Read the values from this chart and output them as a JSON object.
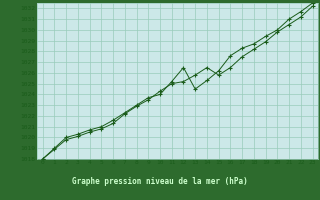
{
  "title": "Graphe pression niveau de la mer (hPa)",
  "plot_bg": "#cce8e8",
  "bottom_bg": "#2d6b2d",
  "grid_color": "#99ccbb",
  "line_color": "#1a5c1a",
  "marker_color": "#1a5c1a",
  "tick_label_color": "#1a5c1a",
  "bottom_text_color": "#ccffcc",
  "xlim": [
    -0.5,
    23.5
  ],
  "ylim": [
    1018,
    1032.5
  ],
  "xticks": [
    0,
    1,
    2,
    3,
    4,
    5,
    6,
    7,
    8,
    9,
    10,
    11,
    12,
    13,
    14,
    15,
    16,
    17,
    18,
    19,
    20,
    21,
    22,
    23
  ],
  "yticks": [
    1018,
    1019,
    1020,
    1021,
    1022,
    1023,
    1024,
    1025,
    1026,
    1027,
    1028,
    1029,
    1030,
    1031,
    1032
  ],
  "series1_x": [
    0,
    1,
    2,
    3,
    4,
    5,
    6,
    7,
    8,
    9,
    10,
    11,
    12,
    13,
    14,
    15,
    16,
    17,
    18,
    19,
    20,
    21,
    22,
    23
  ],
  "series1_y": [
    1018.0,
    1018.9,
    1019.8,
    1020.1,
    1020.5,
    1020.8,
    1021.3,
    1022.2,
    1022.9,
    1023.5,
    1024.3,
    1025.0,
    1025.2,
    1025.8,
    1026.5,
    1025.8,
    1026.5,
    1027.5,
    1028.2,
    1028.9,
    1029.8,
    1030.5,
    1031.2,
    1032.2
  ],
  "series2_x": [
    0,
    1,
    2,
    3,
    4,
    5,
    6,
    7,
    8,
    9,
    10,
    11,
    12,
    13,
    14,
    15,
    16,
    17,
    18,
    19,
    20,
    21,
    22,
    23
  ],
  "series2_y": [
    1018.0,
    1019.0,
    1020.0,
    1020.3,
    1020.7,
    1021.0,
    1021.6,
    1022.3,
    1023.0,
    1023.7,
    1024.0,
    1025.2,
    1026.5,
    1024.5,
    1025.3,
    1026.2,
    1027.6,
    1028.3,
    1028.7,
    1029.4,
    1030.0,
    1031.0,
    1031.7,
    1032.5
  ]
}
